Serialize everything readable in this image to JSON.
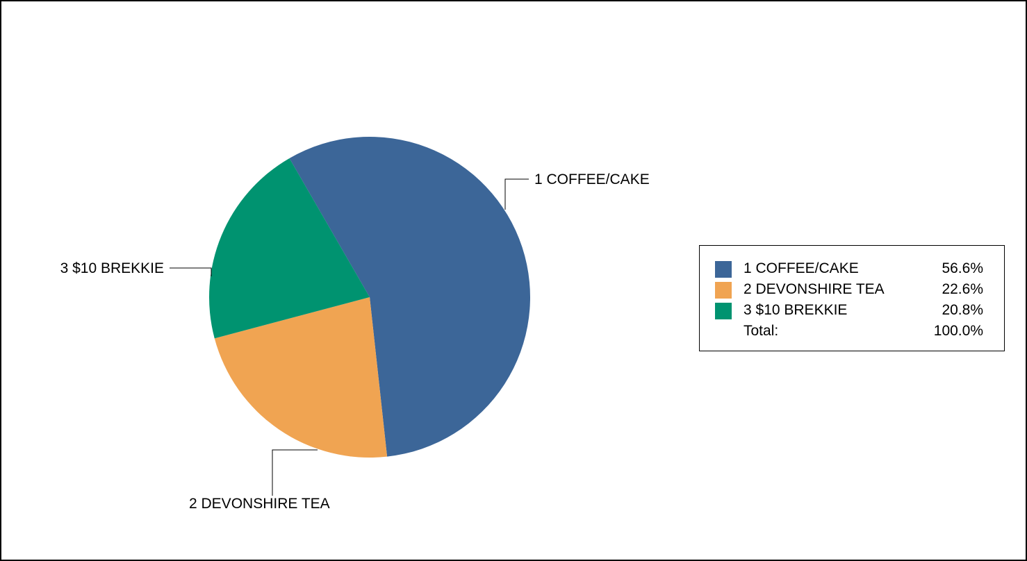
{
  "chart_data": {
    "type": "pie",
    "categories": [
      "1 COFFEE/CAKE",
      "2 DEVONSHIRE TEA",
      "3 $10 BREKKIE"
    ],
    "values": [
      56.6,
      22.6,
      20.8
    ],
    "colors": [
      "#3c6698",
      "#f0a452",
      "#009370"
    ],
    "legend": {
      "placement": "right",
      "entries": [
        {
          "label": "1 COFFEE/CAKE",
          "value": "56.6%"
        },
        {
          "label": "2 DEVONSHIRE TEA",
          "value": "22.6%"
        },
        {
          "label": "3 $10 BREKKIE",
          "value": "20.8%"
        }
      ],
      "total_label": "Total:",
      "total_value": "100.0%"
    }
  }
}
